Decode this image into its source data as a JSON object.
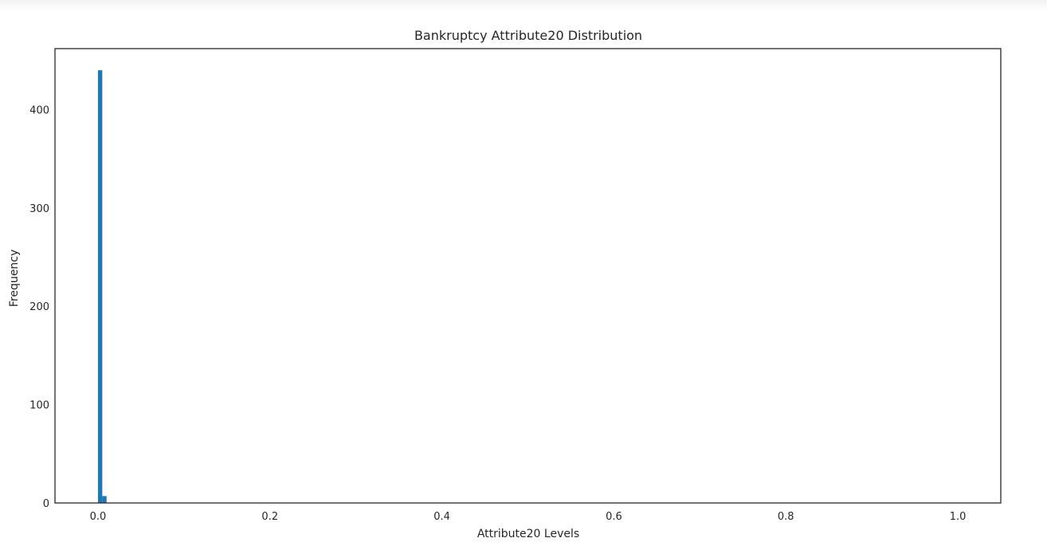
{
  "chart_data": {
    "type": "bar",
    "title": "Bankruptcy Attribute20 Distribution",
    "xlabel": "Attribute20 Levels",
    "ylabel": "Frequency",
    "xlim": [
      -0.05,
      1.05
    ],
    "ylim": [
      0,
      462
    ],
    "xticks": [
      0.0,
      0.2,
      0.4,
      0.6,
      0.8,
      1.0
    ],
    "xtick_labels": [
      "0.0",
      "0.2",
      "0.4",
      "0.6",
      "0.8",
      "1.0"
    ],
    "yticks": [
      0,
      100,
      200,
      300,
      400
    ],
    "ytick_labels": [
      "0",
      "100",
      "200",
      "300",
      "400"
    ],
    "grid": false,
    "bar_color": "#1f77b4",
    "bins": [
      {
        "x0": 0.0,
        "x1": 0.005,
        "count": 440
      },
      {
        "x0": 0.005,
        "x1": 0.01,
        "count": 7
      }
    ]
  }
}
